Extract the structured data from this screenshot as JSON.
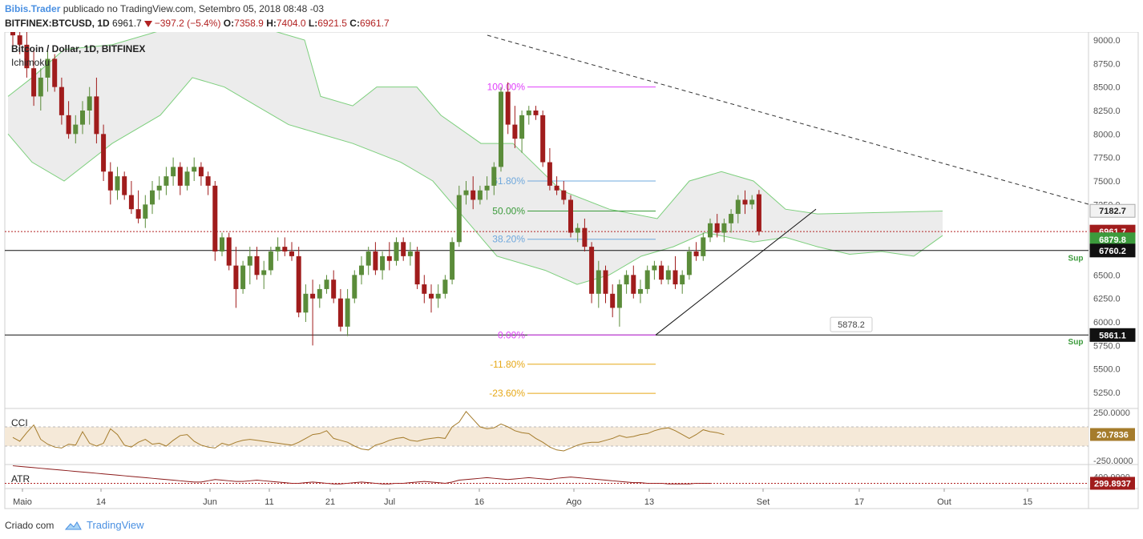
{
  "header": {
    "author": "Bibis.Trader",
    "published_text": "publicado no TradingView.com, Setembro 05, 2018 08:48 -03",
    "symbol_line": "BITFINEX:BTCUSD, 1D",
    "last": "6961.7",
    "change": "−397.2 (−5.4%)",
    "o_label": "O:",
    "o_value": "7358.9",
    "h_label": "H:",
    "h_value": "7404.0",
    "l_label": "L:",
    "l_value": "6921.5",
    "c_label": "C:",
    "c_value": "6961.7"
  },
  "legend": {
    "title": "Bitcoin / Dollar, 1D, BITFINEX",
    "indicator": "Ichimoku"
  },
  "panels": {
    "cci_label": "CCI",
    "atr_label": "ATR"
  },
  "footer": {
    "created_with": "Criado com",
    "brand": "TradingView"
  },
  "colors": {
    "up": "#5b8c3a",
    "down": "#a01c1c",
    "cloud_fill": "#ececec",
    "cloud_line": "#7dcf7d",
    "fib_100": "#e040fb",
    "fib_618": "#6fa8dc",
    "fib_50": "#3c9b3c",
    "fib_382": "#6fa8dc",
    "fib_0": "#e040fb",
    "fib_neg": "#e6a817",
    "cci_line": "#a57c2c",
    "cci_band": "#f5e9d8",
    "atr_line": "#8b1a1a"
  },
  "chart_data": {
    "type": "candlestick",
    "title": "Bitcoin / Dollar, 1D, BITFINEX",
    "y_ticks": [
      "9000.0",
      "8750.0",
      "8500.0",
      "8250.0",
      "8000.0",
      "7750.0",
      "7500.0",
      "7250.0",
      "7000.0",
      "6750.0",
      "6500.0",
      "6250.0",
      "6000.0",
      "5750.0",
      "5500.0",
      "5250.0"
    ],
    "x_ticks": [
      "Maio",
      "14",
      "Jun",
      "11",
      "21",
      "Jul",
      "16",
      "Ago",
      "13",
      "Set",
      "17",
      "Out",
      "15"
    ],
    "fib_levels": [
      {
        "label": "100.00%",
        "price": 8500
      },
      {
        "label": "61.80%",
        "price": 7500
      },
      {
        "label": "50.00%",
        "price": 7180
      },
      {
        "label": "38.20%",
        "price": 6880
      },
      {
        "label": "0.00%",
        "price": 5861
      },
      {
        "label": "-11.80%",
        "price": 5550
      },
      {
        "label": "-23.60%",
        "price": 5240
      }
    ],
    "price_labels": [
      {
        "text": "7182.7",
        "price": 7182.7,
        "style": "gray"
      },
      {
        "text": "6961.7",
        "price": 6961.7,
        "style": "red"
      },
      {
        "text": "6879.8",
        "price": 6879.8,
        "style": "green"
      },
      {
        "text": "6760.2",
        "price": 6760.2,
        "style": "black"
      },
      {
        "text": "5861.1",
        "price": 5861.1,
        "style": "black"
      }
    ],
    "support_labels": [
      "Sup",
      "Sup"
    ],
    "annotation": "5878.2",
    "candles": [
      [
        9150,
        9300,
        8900,
        9050
      ],
      [
        9050,
        9200,
        8850,
        8950
      ],
      [
        8950,
        9100,
        8600,
        8700
      ],
      [
        8700,
        8900,
        8300,
        8400
      ],
      [
        8400,
        8700,
        8250,
        8600
      ],
      [
        8600,
        8900,
        8450,
        8800
      ],
      [
        8800,
        8850,
        8450,
        8500
      ],
      [
        8500,
        8600,
        8100,
        8200
      ],
      [
        8200,
        8350,
        7950,
        8000
      ],
      [
        8000,
        8200,
        7900,
        8100
      ],
      [
        8100,
        8350,
        8000,
        8250
      ],
      [
        8250,
        8500,
        8100,
        8400
      ],
      [
        8400,
        8600,
        7900,
        8000
      ],
      [
        8000,
        8100,
        7500,
        7600
      ],
      [
        7600,
        7700,
        7250,
        7400
      ],
      [
        7400,
        7650,
        7300,
        7550
      ],
      [
        7550,
        7600,
        7300,
        7350
      ],
      [
        7350,
        7500,
        7150,
        7200
      ],
      [
        7200,
        7400,
        7050,
        7100
      ],
      [
        7100,
        7350,
        7000,
        7250
      ],
      [
        7250,
        7500,
        7150,
        7400
      ],
      [
        7400,
        7550,
        7300,
        7450
      ],
      [
        7450,
        7650,
        7350,
        7550
      ],
      [
        7550,
        7750,
        7450,
        7650
      ],
      [
        7650,
        7700,
        7350,
        7450
      ],
      [
        7450,
        7650,
        7400,
        7600
      ],
      [
        7600,
        7750,
        7500,
        7650
      ],
      [
        7650,
        7700,
        7450,
        7550
      ],
      [
        7550,
        7600,
        7350,
        7450
      ],
      [
        7450,
        7500,
        6650,
        6750
      ],
      [
        6750,
        6950,
        6700,
        6900
      ],
      [
        6900,
        6950,
        6550,
        6600
      ],
      [
        6600,
        6800,
        6150,
        6350
      ],
      [
        6350,
        6650,
        6300,
        6600
      ],
      [
        6600,
        6800,
        6400,
        6700
      ],
      [
        6700,
        6800,
        6450,
        6500
      ],
      [
        6500,
        6650,
        6350,
        6550
      ],
      [
        6550,
        6800,
        6500,
        6750
      ],
      [
        6750,
        6900,
        6650,
        6800
      ],
      [
        6800,
        6900,
        6700,
        6750
      ],
      [
        6750,
        6850,
        6650,
        6700
      ],
      [
        6700,
        6800,
        6050,
        6100
      ],
      [
        6100,
        6400,
        6000,
        6300
      ],
      [
        6300,
        6450,
        5750,
        6250
      ],
      [
        6250,
        6400,
        6150,
        6350
      ],
      [
        6350,
        6500,
        6300,
        6450
      ],
      [
        6450,
        6550,
        6200,
        6250
      ],
      [
        6250,
        6350,
        5900,
        5950
      ],
      [
        5950,
        6350,
        5850,
        6250
      ],
      [
        6250,
        6550,
        6200,
        6500
      ],
      [
        6500,
        6700,
        6400,
        6600
      ],
      [
        6600,
        6800,
        6500,
        6750
      ],
      [
        6750,
        6850,
        6500,
        6550
      ],
      [
        6550,
        6750,
        6450,
        6700
      ],
      [
        6700,
        6850,
        6550,
        6650
      ],
      [
        6650,
        6900,
        6600,
        6850
      ],
      [
        6850,
        6900,
        6650,
        6700
      ],
      [
        6700,
        6850,
        6600,
        6750
      ],
      [
        6750,
        6800,
        6350,
        6400
      ],
      [
        6400,
        6500,
        6200,
        6300
      ],
      [
        6300,
        6400,
        6100,
        6250
      ],
      [
        6250,
        6400,
        6150,
        6300
      ],
      [
        6300,
        6500,
        6250,
        6450
      ],
      [
        6450,
        6900,
        6400,
        6850
      ],
      [
        6850,
        7450,
        6800,
        7350
      ],
      [
        7350,
        7500,
        7250,
        7400
      ],
      [
        7400,
        7550,
        7200,
        7300
      ],
      [
        7300,
        7450,
        7250,
        7400
      ],
      [
        7400,
        7550,
        7300,
        7450
      ],
      [
        7450,
        7700,
        7350,
        7650
      ],
      [
        7650,
        8500,
        7600,
        8450
      ],
      [
        8450,
        8550,
        8000,
        8100
      ],
      [
        8100,
        8300,
        7850,
        7950
      ],
      [
        7950,
        8250,
        7800,
        8200
      ],
      [
        8200,
        8300,
        8100,
        8250
      ],
      [
        8250,
        8300,
        8150,
        8200
      ],
      [
        8200,
        8250,
        7650,
        7700
      ],
      [
        7700,
        7850,
        7400,
        7450
      ],
      [
        7450,
        7550,
        7350,
        7400
      ],
      [
        7400,
        7500,
        7250,
        7300
      ],
      [
        7300,
        7350,
        6900,
        6950
      ],
      [
        6950,
        7050,
        6850,
        7000
      ],
      [
        7000,
        7100,
        6750,
        6800
      ],
      [
        6800,
        6850,
        6200,
        6300
      ],
      [
        6300,
        6650,
        6150,
        6550
      ],
      [
        6550,
        6600,
        6200,
        6300
      ],
      [
        6300,
        6400,
        6050,
        6150
      ],
      [
        6150,
        6450,
        5950,
        6400
      ],
      [
        6400,
        6550,
        6300,
        6500
      ],
      [
        6500,
        6600,
        6250,
        6300
      ],
      [
        6300,
        6450,
        6200,
        6350
      ],
      [
        6350,
        6600,
        6300,
        6550
      ],
      [
        6550,
        6650,
        6450,
        6600
      ],
      [
        6600,
        6650,
        6400,
        6450
      ],
      [
        6450,
        6600,
        6400,
        6550
      ],
      [
        6550,
        6700,
        6350,
        6400
      ],
      [
        6400,
        6550,
        6300,
        6500
      ],
      [
        6500,
        6800,
        6450,
        6750
      ],
      [
        6750,
        6850,
        6650,
        6700
      ],
      [
        6700,
        6950,
        6650,
        6900
      ],
      [
        6900,
        7100,
        6850,
        7050
      ],
      [
        7050,
        7150,
        6900,
        6950
      ],
      [
        6950,
        7100,
        6850,
        7050
      ],
      [
        7050,
        7200,
        6950,
        7150
      ],
      [
        7150,
        7350,
        7050,
        7300
      ],
      [
        7300,
        7400,
        7150,
        7250
      ],
      [
        7250,
        7350,
        7200,
        7300
      ],
      [
        7358.9,
        7404,
        6921.5,
        6961.7
      ]
    ],
    "cci": {
      "upper": 100,
      "lower": -100,
      "y_ticks": [
        "250.0000",
        "-250.0000"
      ],
      "last": "20.7836"
    },
    "atr": {
      "y_ticks": [
        "400.0000"
      ],
      "last": "299.8937"
    }
  }
}
